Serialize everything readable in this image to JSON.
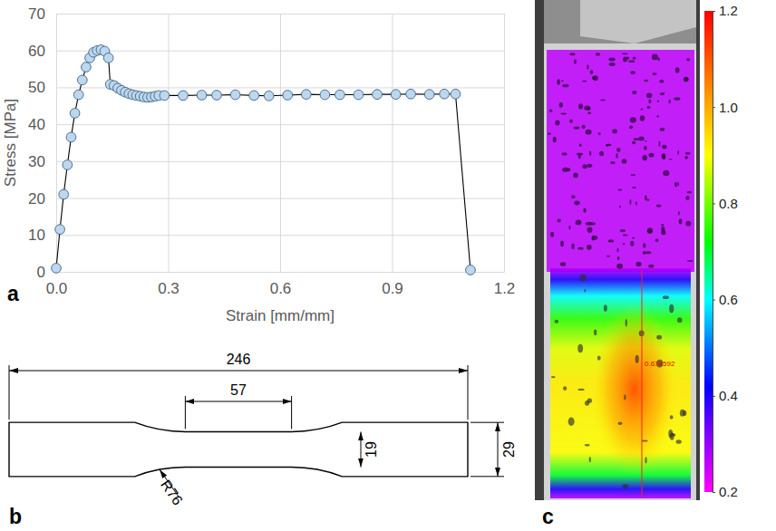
{
  "chart_data": {
    "type": "line",
    "x": [
      0,
      0.01,
      0.02,
      0.03,
      0.04,
      0.05,
      0.06,
      0.07,
      0.08,
      0.09,
      0.1,
      0.11,
      0.12,
      0.13,
      0.14,
      0.145,
      0.155,
      0.165,
      0.175,
      0.185,
      0.195,
      0.205,
      0.215,
      0.225,
      0.235,
      0.245,
      0.255,
      0.265,
      0.275,
      0.29,
      0.34,
      0.39,
      0.43,
      0.48,
      0.53,
      0.57,
      0.62,
      0.67,
      0.72,
      0.76,
      0.81,
      0.86,
      0.91,
      0.95,
      1.0,
      1.04,
      1.07,
      1.11
    ],
    "series": [
      {
        "color": "#bdd7ee",
        "marker": "circle",
        "values": [
          1,
          11.5,
          21,
          29,
          36.5,
          43,
          48,
          52,
          55.5,
          58,
          59.5,
          60,
          60.2,
          59.8,
          58,
          50.8,
          50.5,
          49.8,
          49.2,
          48.7,
          48.3,
          48,
          47.8,
          47.6,
          47.4,
          47.3,
          47.4,
          47.6,
          47.8,
          47.8,
          47.8,
          47.9,
          47.9,
          48,
          47.8,
          47.7,
          47.9,
          48.1,
          48,
          48,
          48,
          48.1,
          48.1,
          48.2,
          48.1,
          48.2,
          48.2,
          0.5
        ]
      }
    ],
    "xlim": [
      0,
      1.2
    ],
    "xticks": [
      {
        "value": 0,
        "label": "0.0"
      },
      0.3,
      0.6,
      0.9,
      1.2
    ],
    "ylim": [
      0,
      70
    ],
    "yticks": [
      0,
      10,
      20,
      30,
      40,
      50,
      60,
      70
    ],
    "grid": true,
    "x_label": "Strain [mm/mm]",
    "y_label": "Stress [MPa]"
  },
  "panel_letters": [
    "a",
    "b",
    "c"
  ],
  "specimen_drawing": {
    "length": 246,
    "width": 29,
    "gauge_length": 57,
    "gauge_width": 19,
    "fillet_radius": {
      "value": 76,
      "label": "R76"
    }
  },
  "dic_image": {
    "probe_value": 0.674592,
    "colorbar": {
      "range": [
        0.2,
        1.2
      ],
      "ticks": [
        0.2,
        0.4,
        0.6,
        0.8,
        {
          "value": 1,
          "label": "1.0"
        },
        1.2
      ]
    }
  }
}
